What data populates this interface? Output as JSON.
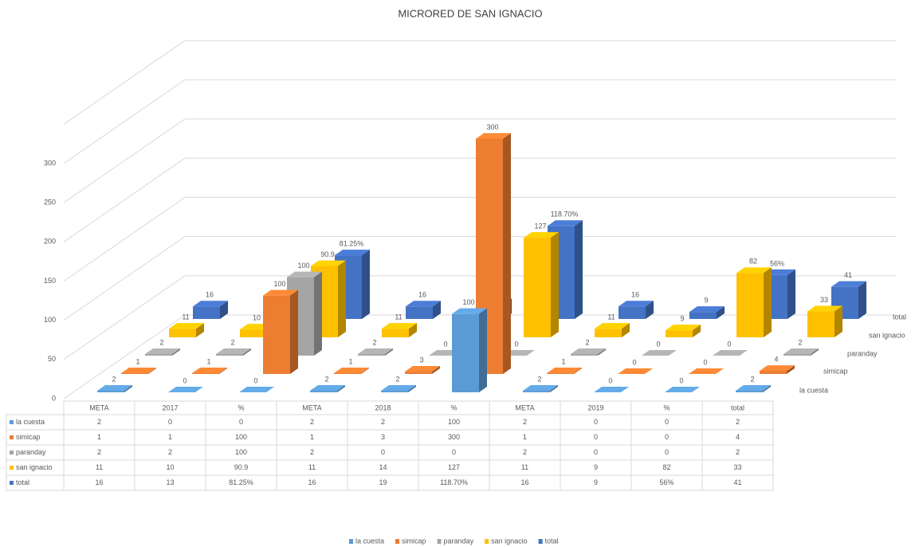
{
  "chart_data": {
    "type": "bar3d",
    "title": "MICRORED DE SAN IGNACIO",
    "categories": [
      "META",
      "2017",
      "%",
      "META",
      "2018",
      "%",
      "META",
      "2019",
      "%",
      "total"
    ],
    "series": [
      {
        "name": "la cuesta",
        "color": "#5b9bd5",
        "values": [
          2,
          0,
          0,
          2,
          2,
          100,
          2,
          0,
          0,
          2
        ]
      },
      {
        "name": "simicap",
        "color": "#ed7d31",
        "values": [
          1,
          1,
          100,
          1,
          3,
          300,
          1,
          0,
          0,
          4
        ]
      },
      {
        "name": "paranday",
        "color": "#a5a5a5",
        "values": [
          2,
          2,
          100,
          2,
          0,
          0,
          2,
          0,
          0,
          2
        ]
      },
      {
        "name": "san ignacio",
        "color": "#ffc000",
        "values": [
          11,
          10,
          90.9,
          11,
          14,
          127,
          11,
          9,
          82,
          33
        ]
      },
      {
        "name": "total",
        "color": "#4472c4",
        "values": [
          16,
          13,
          81.25,
          16,
          19,
          118.7,
          16,
          9,
          56,
          41
        ],
        "value_labels": [
          "16",
          "13",
          "81.25%",
          "16",
          "19",
          "118.70%",
          "16",
          "9",
          "56%",
          "41"
        ]
      }
    ],
    "ylim": [
      0,
      350
    ],
    "yticks": [
      0,
      50,
      100,
      150,
      200,
      250,
      300
    ],
    "grid": true,
    "legend": "bottom"
  }
}
